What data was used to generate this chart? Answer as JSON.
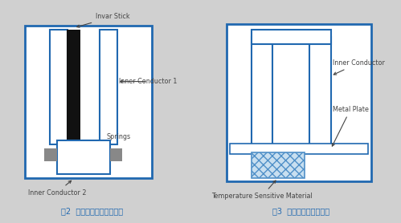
{
  "bg_color": "#d0d0d0",
  "blue_color": "#2068b0",
  "ann_color": "#444444",
  "black_color": "#111111",
  "gray_color": "#888888",
  "hatch_color": "#5090c8",
  "hatch_bg": "#c8dff0",
  "fig_caption_color": "#2068b0",
  "caption1": "图2  限制同轴腔内导体技术",
  "caption2": "图3  同轴腔电容补偿技术",
  "label_invar": "Invar Stick",
  "label_inner1": "Inner Conductor 1",
  "label_springs": "Springs",
  "label_inner2": "Inner Conductor 2",
  "label_inner_r": "Inner Conductor",
  "label_metal": "Metal Plate",
  "label_temp": "Temperature Sensitive Material"
}
